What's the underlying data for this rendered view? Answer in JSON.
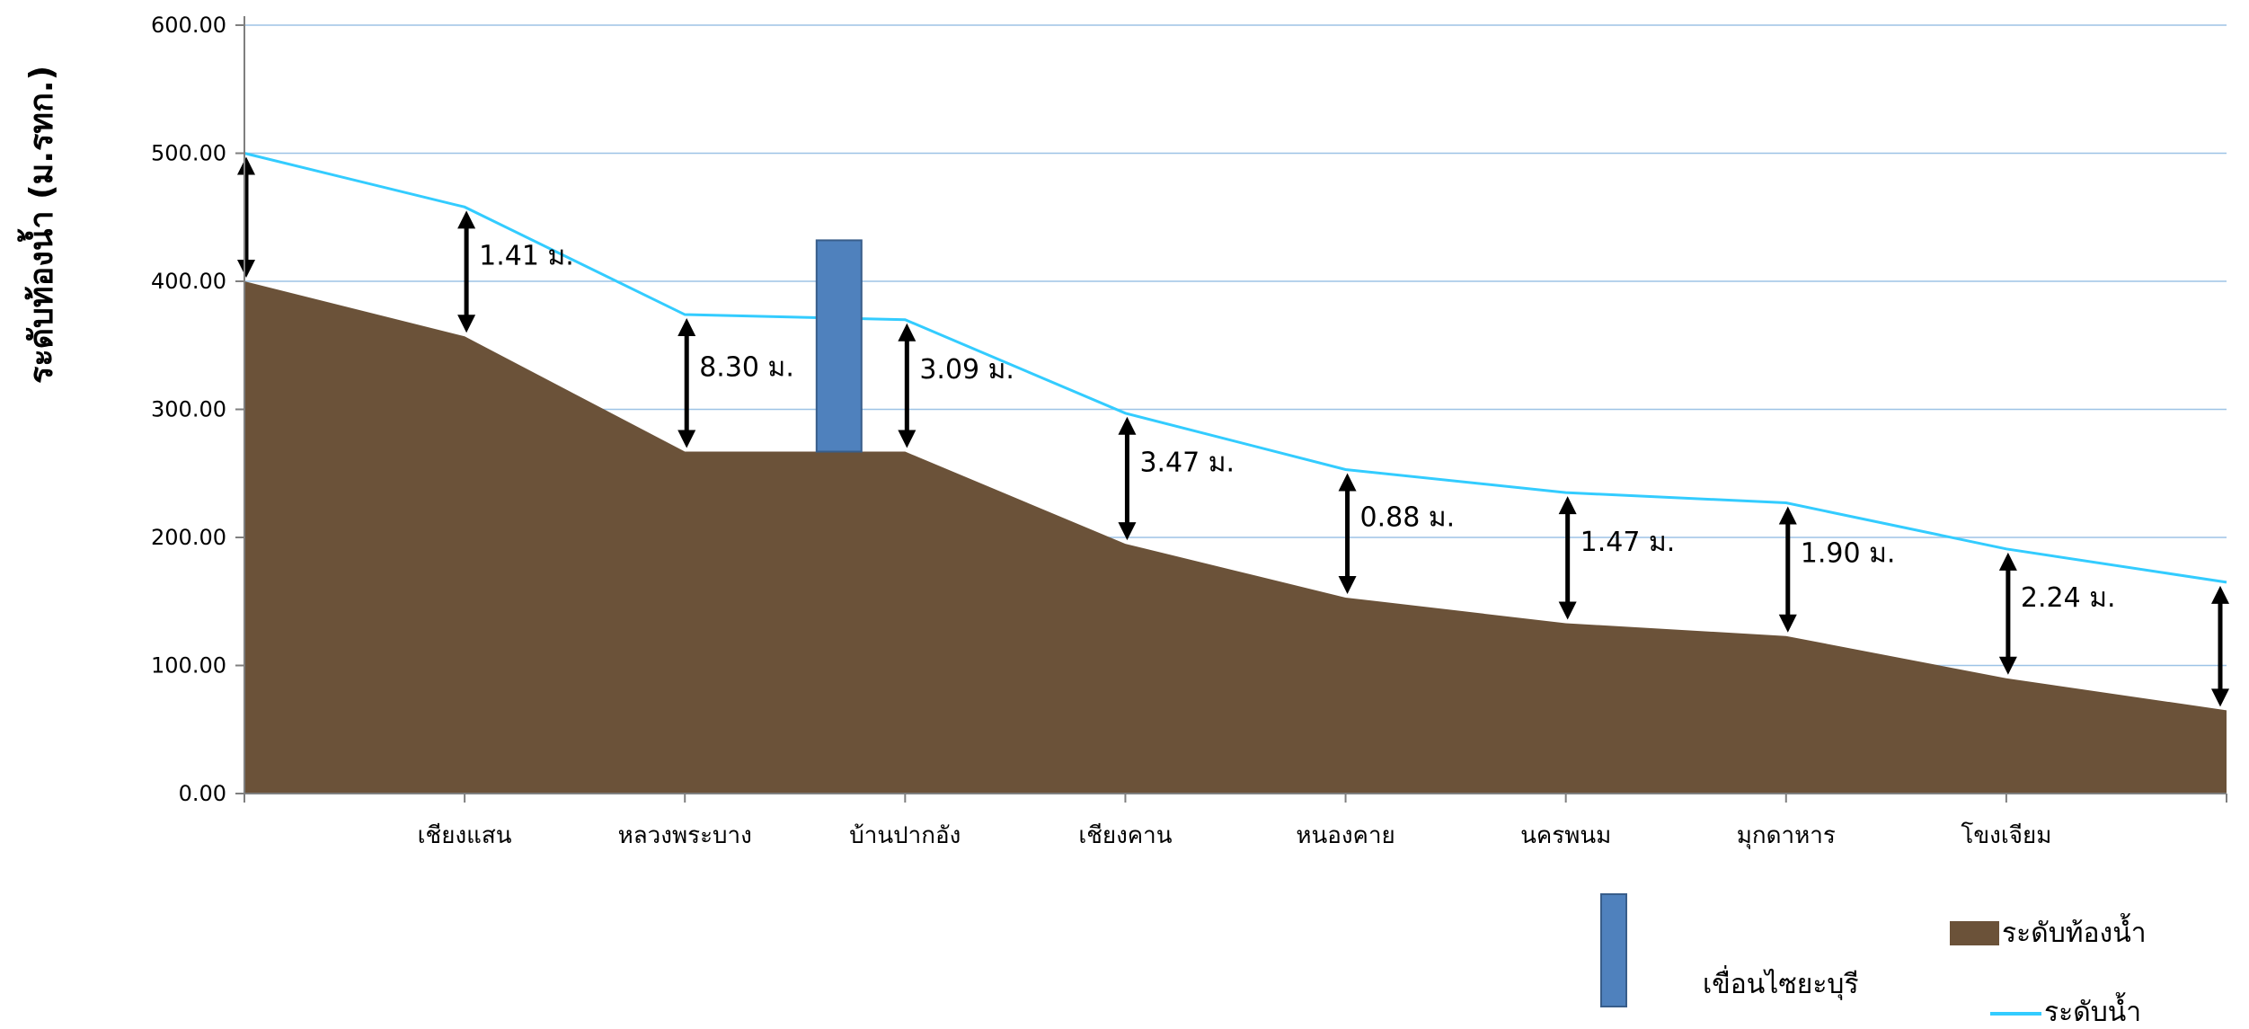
{
  "chart_data": {
    "type": "area",
    "ylabel": "ระดับท้องน้ำ (ม.รทก.)",
    "ylim": [
      0,
      600
    ],
    "yticks": [
      "0.00",
      "100.00",
      "200.00",
      "300.00",
      "400.00",
      "500.00",
      "600.00"
    ],
    "grid": true,
    "categories": [
      "",
      "เชียงแสน",
      "หลวงพระบาง",
      "บ้านปากอัง",
      "เชียงคาน",
      "หนองคาย",
      "นครพนม",
      "มุกดาหาร",
      "โขงเจียม",
      ""
    ],
    "series": [
      {
        "name": "ระดับท้องน้ำ",
        "type": "area",
        "color": "#6B5239",
        "values": [
          400,
          357,
          267,
          267,
          195,
          153,
          133,
          123,
          90,
          65
        ]
      },
      {
        "name": "ระดับน้ำ",
        "type": "line",
        "color": "#33CCFF",
        "values": [
          500,
          458,
          374,
          370,
          297,
          253,
          235,
          227,
          191,
          165
        ]
      }
    ],
    "depth_labels": [
      "",
      "1.41 ม.",
      "8.30 ม.",
      "3.09 ม.",
      "3.47 ม.",
      "0.88 ม.",
      "1.47 ม.",
      "1.90 ม.",
      "2.24 ม.",
      ""
    ],
    "dam": {
      "name": "เขื่อนไซยะบุรี",
      "color": "#4F81BD",
      "position": 2.7,
      "top_value": 432,
      "base_value": 267
    },
    "legend": {
      "placement": "bottom-right",
      "items": [
        {
          "label": "ระดับท้องน้ำ",
          "color": "#6B5239"
        },
        {
          "label": "ระดับน้ำ",
          "color": "#33CCFF"
        }
      ]
    }
  }
}
